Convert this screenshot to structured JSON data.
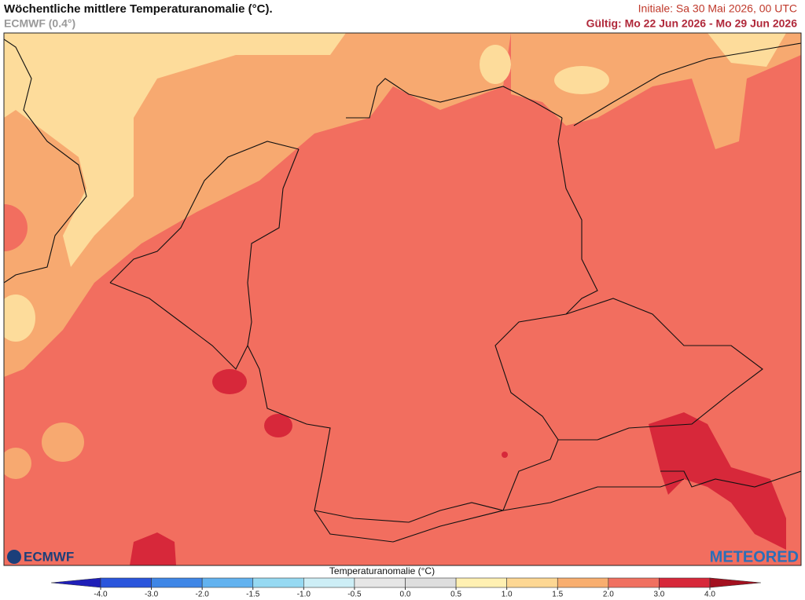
{
  "header": {
    "title": "Wöchentliche mittlere Temperaturanomalie (°C).",
    "model": "ECMWF (0.4°)",
    "init": "Initiale: Sa 30 Mai 2026, 00 UTC",
    "valid": "Gültig: Mo 22 Jun 2026 - Mo 29 Jun 2026"
  },
  "logos": {
    "left": "ECMWF",
    "right": "METEORED"
  },
  "legend": {
    "title": "Temperaturanomalie (°C)",
    "ticks": [
      "-4.0",
      "-3.0",
      "-2.0",
      "-1.5",
      "-1.0",
      "-0.5",
      "0.0",
      "0.5",
      "1.0",
      "1.5",
      "2.0",
      "3.0",
      "4.0"
    ],
    "colors": [
      "#1f1fb8",
      "#2a55dc",
      "#3f86e6",
      "#62b2ef",
      "#96d9f2",
      "#cdeef6",
      "#e6e6e6",
      "#dedede",
      "#fff0b2",
      "#fdd793",
      "#f8ae6f",
      "#f07060",
      "#d7283a",
      "#a3101f"
    ]
  }
}
